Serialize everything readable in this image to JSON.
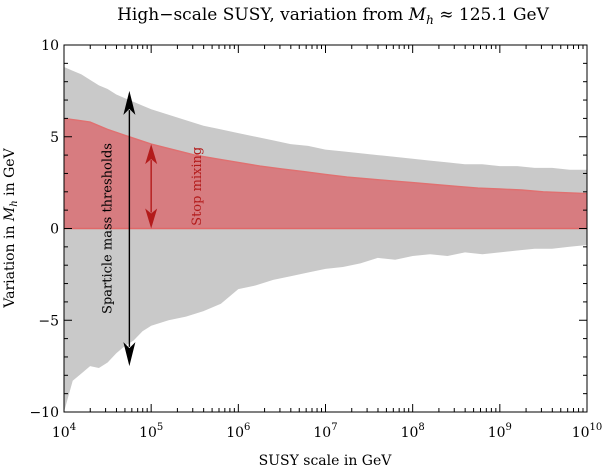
{
  "chart_data": {
    "type": "area",
    "title": "High−scale SUSY, variation from M_h ≈ 125.1 GeV",
    "title_parts": {
      "prefix": "High−scale SUSY, variation from ",
      "symbol": "M",
      "subscript": "h",
      "suffix": " ≈ 125.1 GeV"
    },
    "xlabel": "SUSY scale in GeV",
    "ylabel": "Variation in M_h in GeV",
    "ylabel_parts": {
      "prefix": "Variation in ",
      "symbol": "M",
      "subscript": "h",
      "suffix": " in GeV"
    },
    "xscale": "log10",
    "xlim_log10": [
      4,
      10
    ],
    "ylim": [
      -10,
      10
    ],
    "x_ticks": [
      {
        "base": "10",
        "exp": "4",
        "value": 4
      },
      {
        "base": "10",
        "exp": "5",
        "value": 5
      },
      {
        "base": "10",
        "exp": "6",
        "value": 6
      },
      {
        "base": "10",
        "exp": "7",
        "value": 7
      },
      {
        "base": "10",
        "exp": "8",
        "value": 8
      },
      {
        "base": "10",
        "exp": "9",
        "value": 9
      },
      {
        "base": "10",
        "exp": "10",
        "value": 10
      }
    ],
    "y_ticks": [
      {
        "label": "10",
        "value": 10
      },
      {
        "label": "5",
        "value": 5
      },
      {
        "label": "0",
        "value": 0
      },
      {
        "label": "−5",
        "value": -5
      },
      {
        "label": "−10",
        "value": -10
      }
    ],
    "series": [
      {
        "name": "Sparticle mass thresholds",
        "color": "#c9c9c9",
        "log10_x": [
          4.0,
          4.1,
          4.2,
          4.3,
          4.4,
          4.5,
          4.6,
          4.7,
          4.8,
          4.9,
          5.0,
          5.2,
          5.4,
          5.6,
          5.8,
          6.0,
          6.2,
          6.4,
          6.6,
          6.8,
          7.0,
          7.2,
          7.4,
          7.6,
          7.8,
          8.0,
          8.2,
          8.4,
          8.6,
          8.8,
          9.0,
          9.2,
          9.4,
          9.6,
          9.8,
          10.0
        ],
        "upper": [
          8.8,
          8.6,
          8.4,
          8.1,
          7.8,
          7.6,
          7.3,
          7.1,
          6.9,
          6.7,
          6.5,
          6.2,
          5.9,
          5.6,
          5.4,
          5.2,
          5.0,
          4.8,
          4.6,
          4.5,
          4.3,
          4.2,
          4.1,
          4.0,
          3.9,
          3.8,
          3.7,
          3.6,
          3.5,
          3.5,
          3.4,
          3.4,
          3.3,
          3.3,
          3.2,
          3.2
        ],
        "lower": [
          -10.0,
          -8.3,
          -7.9,
          -7.5,
          -7.6,
          -7.3,
          -6.8,
          -6.4,
          -6.1,
          -5.6,
          -5.3,
          -5.0,
          -4.8,
          -4.5,
          -4.1,
          -3.3,
          -3.1,
          -2.8,
          -2.6,
          -2.4,
          -2.2,
          -2.1,
          -1.9,
          -1.6,
          -1.7,
          -1.5,
          -1.4,
          -1.5,
          -1.3,
          -1.4,
          -1.3,
          -1.2,
          -1.1,
          -1.1,
          -1.0,
          -0.9
        ]
      },
      {
        "name": "Stop mixing",
        "color": "#d77c80",
        "edge_color": "#e07070",
        "log10_x": [
          4.0,
          4.15,
          4.3,
          4.5,
          4.75,
          5.0,
          5.25,
          5.5,
          5.75,
          6.0,
          6.25,
          6.5,
          6.75,
          7.0,
          7.25,
          7.5,
          7.75,
          8.0,
          8.25,
          8.5,
          8.75,
          9.0,
          9.25,
          9.5,
          9.75,
          10.0
        ],
        "upper": [
          6.0,
          5.9,
          5.8,
          5.4,
          5.0,
          4.6,
          4.3,
          4.0,
          3.8,
          3.6,
          3.4,
          3.25,
          3.1,
          2.95,
          2.8,
          2.7,
          2.6,
          2.5,
          2.4,
          2.3,
          2.2,
          2.15,
          2.1,
          2.0,
          1.95,
          1.9
        ],
        "lower": [
          0,
          0,
          0,
          0,
          0,
          0,
          0,
          0,
          0,
          0,
          0,
          0,
          0,
          0,
          0,
          0,
          0,
          0,
          0,
          0,
          0,
          0,
          0,
          0,
          0,
          0
        ]
      }
    ],
    "annotations": [
      {
        "text": "Sparticle mass thresholds",
        "color": "#000000",
        "arrow_log10_x": 4.75,
        "arrow_y": [
          7.5,
          -7.5
        ]
      },
      {
        "text": "Stop mixing",
        "color": "#b31b1b",
        "arrow_log10_x": 5.0,
        "arrow_y": [
          4.6,
          0.0
        ]
      }
    ]
  }
}
